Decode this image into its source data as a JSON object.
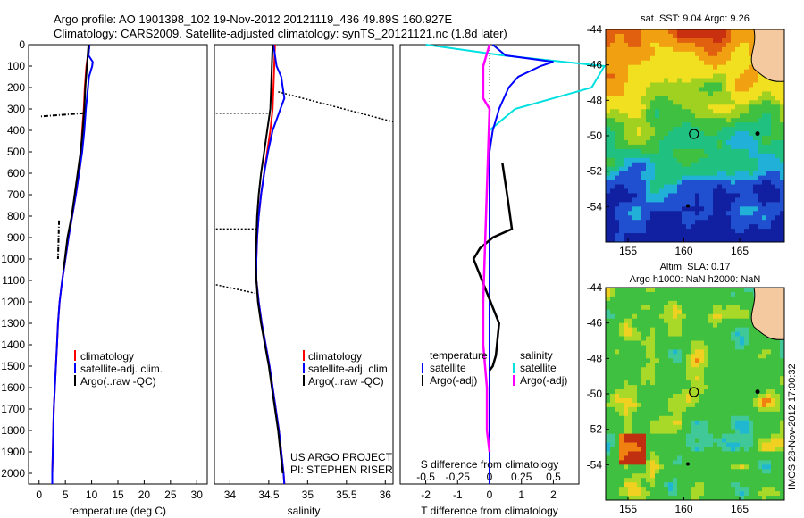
{
  "header": {
    "line1": "Argo profile: AO 1901398_102 19-Nov-2012 20121119_436 49.89S 160.927E",
    "line2": "Climatology: CARS2009. Satellite-adjusted climatology: synTS_20121121.nc (1.8d later)"
  },
  "colors": {
    "climatology": "#ff0000",
    "satellite": "#0000ff",
    "argo": "#000000",
    "salinity_satellite": "#00e0e0",
    "salinity_argo": "#ff00ff"
  },
  "chart_data": [
    {
      "type": "line",
      "panel": "temperature",
      "xlabel": "temperature (deg C)",
      "ylabel": "",
      "xlim": [
        -2,
        32
      ],
      "ylim": [
        2050,
        0
      ],
      "x_ticks": [
        "0",
        "5",
        "10",
        "15",
        "20",
        "25",
        "30"
      ],
      "y_ticks": [
        "0",
        "100",
        "200",
        "300",
        "400",
        "500",
        "600",
        "700",
        "800",
        "900",
        "1000",
        "1100",
        "1200",
        "1300",
        "1400",
        "1500",
        "1600",
        "1700",
        "1800",
        "1900",
        "2000"
      ],
      "legend": [
        "climatology",
        "satellite-adj. clim.",
        "Argo(..raw -QC)"
      ],
      "series": [
        {
          "name": "climatology",
          "depth": [
            0,
            50,
            100,
            200,
            300,
            400,
            500,
            550,
            600,
            700,
            800,
            900,
            1000,
            1100,
            1200,
            1300,
            1400,
            1500,
            1600,
            1700,
            1800,
            1900,
            2000,
            2050
          ],
          "values": [
            9.5,
            9.3,
            9.0,
            8.7,
            8.5,
            8.2,
            8.0,
            7.9,
            7.6,
            7.0,
            6.3,
            5.6,
            5.0,
            4.4,
            3.9,
            3.6,
            3.4,
            3.2,
            3.0,
            2.8,
            2.7,
            2.6,
            2.5,
            2.5
          ]
        },
        {
          "name": "satellite-adj. clim.",
          "depth": [
            0,
            50,
            80,
            100,
            150,
            200,
            250,
            300,
            400,
            500,
            550,
            600,
            700,
            800,
            900,
            1000,
            1100,
            1200,
            1300,
            1400,
            1500,
            1600,
            1700,
            1800,
            1900,
            2000,
            2050
          ],
          "values": [
            9.6,
            9.4,
            10.2,
            10.1,
            9.5,
            9.3,
            9.1,
            8.9,
            8.6,
            8.2,
            7.9,
            7.6,
            7.0,
            6.3,
            5.6,
            5.0,
            4.4,
            3.9,
            3.6,
            3.4,
            3.2,
            3.0,
            2.8,
            2.7,
            2.6,
            2.5,
            2.5
          ]
        },
        {
          "name": "Argo(..raw -QC)",
          "depth": [
            0,
            100,
            200,
            300,
            330,
            400,
            500,
            800,
            900,
            1000,
            1050
          ],
          "values": [
            9.4,
            9.1,
            8.8,
            8.6,
            8.5,
            8.3,
            7.9,
            6.2,
            5.4,
            4.9,
            4.6
          ]
        }
      ],
      "outliers": [
        {
          "depth": [
            320,
            335
          ],
          "values": [
            8.5,
            0.2
          ]
        },
        {
          "depth": [
            820,
            1000
          ],
          "values": [
            3.8,
            3.6
          ]
        }
      ]
    },
    {
      "type": "line",
      "panel": "salinity",
      "xlabel": "salinity",
      "ylabel": "",
      "xlim": [
        33.8,
        36.1
      ],
      "ylim": [
        2050,
        0
      ],
      "x_ticks": [
        "34",
        "34.5",
        "35",
        "35.5",
        "36"
      ],
      "legend": [
        "climatology",
        "satellite-adj. clim.",
        "Argo(..raw -QC)"
      ],
      "annotation": [
        "US ARGO PROJECT",
        "PI: STEPHEN RISER"
      ],
      "series": [
        {
          "name": "climatology",
          "depth": [
            0,
            100,
            200,
            300,
            400,
            500,
            600,
            700,
            800,
            900,
            1000,
            1100,
            1200,
            1300,
            1400,
            1500,
            1600,
            1700,
            1800,
            1900,
            2000,
            2050
          ],
          "values": [
            34.58,
            34.57,
            34.56,
            34.55,
            34.52,
            34.48,
            34.44,
            34.4,
            34.37,
            34.35,
            34.34,
            34.34,
            34.37,
            34.41,
            34.46,
            34.51,
            34.55,
            34.59,
            34.63,
            34.66,
            34.69,
            34.7
          ]
        },
        {
          "name": "satellite-adj. clim.",
          "depth": [
            0,
            50,
            100,
            150,
            200,
            250,
            300,
            400,
            500,
            600,
            700,
            800,
            900,
            1000,
            1100,
            1200,
            1300,
            1400,
            1500,
            1600,
            1700,
            1800,
            1900,
            2000,
            2050
          ],
          "values": [
            34.56,
            34.58,
            34.6,
            34.66,
            34.68,
            34.7,
            34.65,
            34.55,
            34.49,
            34.44,
            34.4,
            34.37,
            34.35,
            34.34,
            34.34,
            34.37,
            34.41,
            34.46,
            34.51,
            34.55,
            34.59,
            34.63,
            34.66,
            34.69,
            34.7
          ]
        },
        {
          "name": "Argo(..raw -QC)",
          "depth": [
            0,
            100,
            200,
            300,
            400,
            500,
            600,
            700,
            800,
            900,
            1000,
            1100,
            1200,
            1300,
            1400,
            1500,
            1600,
            1700,
            1800,
            1900,
            2000
          ],
          "values": [
            34.55,
            34.54,
            34.53,
            34.52,
            34.48,
            34.44,
            34.4,
            34.37,
            34.35,
            34.34,
            34.33,
            34.34,
            34.36,
            34.4,
            34.45,
            34.5,
            34.54,
            34.58,
            34.62,
            34.65,
            34.68
          ]
        }
      ],
      "outliers": [
        {
          "depth": [
            320,
            320
          ],
          "values": [
            33.82,
            34.5
          ]
        },
        {
          "depth": [
            220,
            360
          ],
          "values": [
            34.62,
            36.1
          ]
        },
        {
          "depth": [
            860,
            860
          ],
          "values": [
            33.82,
            34.35
          ]
        },
        {
          "depth": [
            1120,
            1160
          ],
          "values": [
            33.82,
            34.33
          ]
        }
      ]
    },
    {
      "type": "line",
      "panel": "difference",
      "xlabel": "T difference from climatology",
      "xlabel_top": "S difference from climatology",
      "xlim": [
        -2.8,
        2.8
      ],
      "ylim": [
        2050,
        0
      ],
      "x_ticks": [
        "-2",
        "-1",
        "0",
        "1",
        "2"
      ],
      "s_ticks": [
        "-0.5",
        "-0.25",
        "0",
        "0.25",
        "0.5"
      ],
      "legend_headers": [
        "temperature",
        "salinity"
      ],
      "legend": [
        "satellite",
        "Argo(-adj)",
        "satellite",
        "Argo(-adj)"
      ],
      "series": [
        {
          "name": "satellite",
          "depth": [
            0,
            50,
            80,
            100,
            150,
            200,
            300,
            400,
            500,
            700,
            900,
            1100,
            1300,
            1500,
            1700,
            1900,
            2050
          ],
          "values": [
            0.1,
            0.5,
            2.0,
            1.6,
            0.9,
            0.6,
            0.3,
            0.1,
            0.0,
            0.0,
            0.0,
            0.0,
            0.0,
            0.0,
            0.0,
            0.0,
            0.0
          ]
        },
        {
          "name": "Argo(-adj)",
          "depth": [
            550,
            650,
            750,
            860,
            900,
            950,
            1000,
            1300,
            1450,
            1500,
            1520
          ],
          "values": [
            0.4,
            0.5,
            0.6,
            0.7,
            0.1,
            -0.3,
            -0.5,
            0.3,
            0.2,
            0.1,
            0.0
          ]
        },
        {
          "name": "salinity satellite",
          "depth": [
            0,
            50,
            100,
            200,
            300,
            400,
            500,
            1000,
            1500,
            2050
          ],
          "values": [
            -0.5,
            0.1,
            0.9,
            0.8,
            0.2,
            0.0,
            0.0,
            0.0,
            0.0,
            0.0
          ]
        },
        {
          "name": "salinity Argo(-adj)",
          "depth": [
            0,
            100,
            250,
            300,
            1200,
            1400,
            1600,
            1800,
            1900
          ],
          "values": [
            0.0,
            -0.05,
            -0.05,
            0.0,
            -0.05,
            -0.05,
            -0.02,
            -0.02,
            0.0
          ]
        }
      ]
    },
    {
      "type": "heatmap",
      "panel": "sst_map",
      "title": "sat. SST: 9.04 Argo: 9.26",
      "xlim": [
        153,
        169
      ],
      "ylim": [
        -56,
        -44
      ],
      "x_ticks": [
        "155",
        "160",
        "165"
      ],
      "y_ticks": [
        "-44",
        "-46",
        "-48",
        "-50",
        "-52",
        "-54"
      ],
      "marker": {
        "lon": 160.9,
        "lat": -49.9
      }
    },
    {
      "type": "heatmap",
      "panel": "sla_map",
      "title_line1": "Altim. SLA: 0.17",
      "title_line2": "Argo h1000: NaN h2000: NaN",
      "xlim": [
        153,
        169
      ],
      "ylim": [
        -56,
        -44
      ],
      "x_ticks": [
        "155",
        "160",
        "165"
      ],
      "y_ticks": [
        "-44",
        "-46",
        "-48",
        "-50",
        "-52",
        "-54"
      ],
      "marker": {
        "lon": 160.9,
        "lat": -49.9
      },
      "side_label": "IMOS 28-Nov-2012 17:00:32"
    }
  ]
}
